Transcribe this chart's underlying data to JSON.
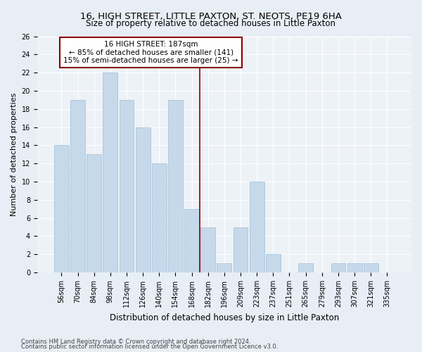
{
  "title": "16, HIGH STREET, LITTLE PAXTON, ST. NEOTS, PE19 6HA",
  "subtitle": "Size of property relative to detached houses in Little Paxton",
  "xlabel": "Distribution of detached houses by size in Little Paxton",
  "ylabel": "Number of detached properties",
  "footnote1": "Contains HM Land Registry data © Crown copyright and database right 2024.",
  "footnote2": "Contains public sector information licensed under the Open Government Licence v3.0.",
  "categories": [
    "56sqm",
    "70sqm",
    "84sqm",
    "98sqm",
    "112sqm",
    "126sqm",
    "140sqm",
    "154sqm",
    "168sqm",
    "182sqm",
    "196sqm",
    "209sqm",
    "223sqm",
    "237sqm",
    "251sqm",
    "265sqm",
    "279sqm",
    "293sqm",
    "307sqm",
    "321sqm",
    "335sqm"
  ],
  "values": [
    14,
    19,
    13,
    22,
    19,
    16,
    12,
    19,
    7,
    5,
    1,
    5,
    10,
    2,
    0,
    1,
    0,
    1,
    1,
    1,
    0
  ],
  "bar_color": "#c6d9ea",
  "bar_edgecolor": "#a8c4db",
  "highlight_line_color": "#8b0000",
  "annotation_text": "16 HIGH STREET: 187sqm\n← 85% of detached houses are smaller (141)\n15% of semi-detached houses are larger (25) →",
  "annotation_box_color": "#ffffff",
  "annotation_box_edgecolor": "#8b0000",
  "ylim": [
    0,
    26
  ],
  "yticks": [
    0,
    2,
    4,
    6,
    8,
    10,
    12,
    14,
    16,
    18,
    20,
    22,
    24,
    26
  ],
  "title_fontsize": 9.5,
  "subtitle_fontsize": 8.5,
  "ylabel_fontsize": 8,
  "xlabel_fontsize": 8.5,
  "annotation_fontsize": 7.5,
  "tick_fontsize": 7,
  "bg_color": "#e8eef5",
  "axes_bg_color": "#edf2f7"
}
